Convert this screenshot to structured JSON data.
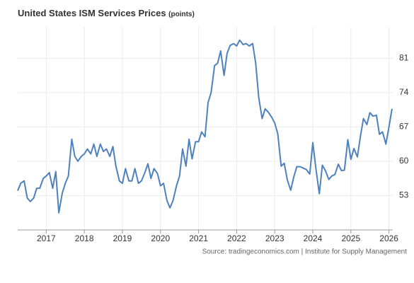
{
  "chart_data": {
    "type": "line",
    "title": "United States ISM Services Prices",
    "unit": "(points)",
    "source": "Source: tradingeconomics.com | Institute for Supply Management",
    "x": [
      2016.25,
      2016.33,
      2016.42,
      2016.5,
      2016.58,
      2016.67,
      2016.75,
      2016.83,
      2016.92,
      2017,
      2017.08,
      2017.17,
      2017.25,
      2017.33,
      2017.42,
      2017.5,
      2017.58,
      2017.67,
      2017.75,
      2017.83,
      2017.92,
      2018,
      2018.08,
      2018.17,
      2018.25,
      2018.33,
      2018.42,
      2018.5,
      2018.58,
      2018.67,
      2018.75,
      2018.83,
      2018.92,
      2019,
      2019.08,
      2019.17,
      2019.25,
      2019.33,
      2019.42,
      2019.5,
      2019.58,
      2019.67,
      2019.75,
      2019.83,
      2019.92,
      2020,
      2020.08,
      2020.17,
      2020.25,
      2020.33,
      2020.42,
      2020.5,
      2020.58,
      2020.67,
      2020.75,
      2020.83,
      2020.92,
      2021,
      2021.08,
      2021.17,
      2021.25,
      2021.33,
      2021.42,
      2021.5,
      2021.58,
      2021.67,
      2021.75,
      2021.83,
      2021.92,
      2022,
      2022.08,
      2022.17,
      2022.25,
      2022.33,
      2022.42,
      2022.5,
      2022.58,
      2022.67,
      2022.75,
      2022.83,
      2022.92,
      2023,
      2023.08,
      2023.17,
      2023.25,
      2023.33,
      2023.42,
      2023.5,
      2023.58,
      2023.67,
      2023.75,
      2023.83,
      2023.92,
      2024,
      2024.08,
      2024.17,
      2024.25,
      2024.33,
      2024.42,
      2024.5,
      2024.58,
      2024.67,
      2024.75,
      2024.83,
      2024.92,
      2025,
      2025.08,
      2025.17,
      2025.25,
      2025.33,
      2025.42,
      2025.5,
      2025.58,
      2025.67,
      2025.75,
      2025.83,
      2025.92,
      2026,
      2026.08
    ],
    "series": [
      {
        "name": "ISM Services Prices",
        "color": "#4e81bd",
        "values": [
          54,
          55.5,
          56,
          52.5,
          51.8,
          52.5,
          54.5,
          54.5,
          56.5,
          57,
          57.7,
          54.5,
          57.9,
          49.5,
          53.5,
          55.5,
          57,
          64.5,
          61,
          60,
          61,
          61.5,
          62.5,
          61.5,
          63.5,
          61,
          63.5,
          62,
          62.5,
          61,
          63,
          59,
          56,
          55.5,
          58.5,
          56,
          56,
          58.5,
          55.5,
          56,
          57.5,
          59.5,
          56.5,
          58.5,
          57.5,
          55,
          55.5,
          52,
          50.5,
          52,
          55,
          57,
          62.5,
          59,
          64.5,
          60.5,
          64,
          64,
          66,
          65,
          72,
          74,
          79.5,
          80,
          82.5,
          77.5,
          82,
          83.6,
          84,
          83.5,
          84.7,
          83.8,
          84,
          83.5,
          84,
          80,
          73,
          68.7,
          70.7,
          70,
          69,
          67.8,
          65.6,
          59,
          59.6,
          56.2,
          54.1,
          56.8,
          58.9,
          58.9,
          58.6,
          58.3,
          57.4,
          63.8,
          58.6,
          53.4,
          59.2,
          58.1,
          56.3,
          57,
          57.3,
          59.4,
          58.1,
          58.2,
          64.4,
          60.4,
          62.6,
          60.9,
          65.1,
          68.7,
          67.5,
          69.9,
          69.2,
          69.4,
          65.5,
          66,
          63.5,
          67,
          70.7
        ]
      }
    ],
    "xlim": [
      2016.25,
      2026.1
    ],
    "xticks": [
      2017,
      2018,
      2019,
      2020,
      2021,
      2022,
      2023,
      2024,
      2025,
      2026
    ],
    "ylim": [
      46,
      87.4
    ],
    "yticks": [
      53,
      60,
      67,
      74,
      81
    ],
    "grid": true
  }
}
